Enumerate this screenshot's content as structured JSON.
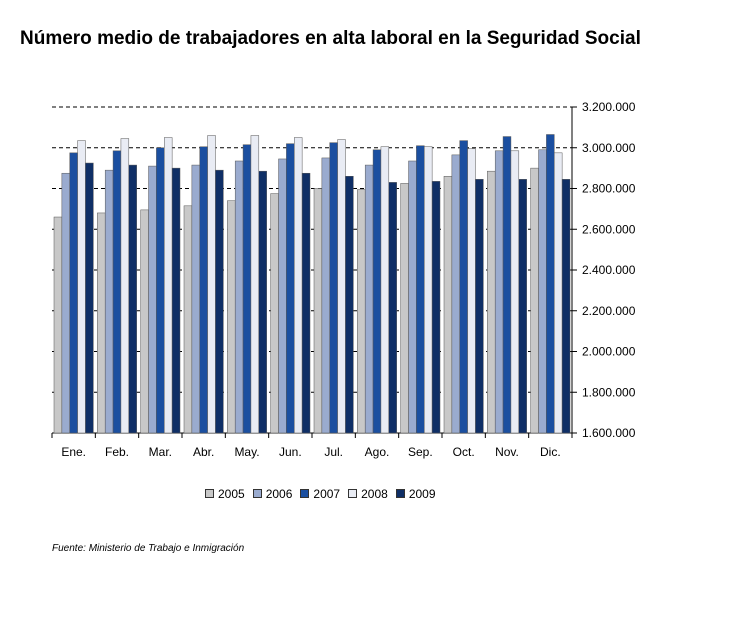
{
  "title": "Número medio de trabajadores en alta laboral en la Seguridad Social",
  "source": "Fuente: Ministerio de Trabajo e Inmigración",
  "chart_data": {
    "type": "bar",
    "categories": [
      "Ene.",
      "Feb.",
      "Mar.",
      "Abr.",
      "May.",
      "Jun.",
      "Jul.",
      "Ago.",
      "Sep.",
      "Oct.",
      "Nov.",
      "Dic."
    ],
    "series": [
      {
        "name": "2005",
        "color": "#c8c8c8",
        "values": [
          2660000,
          2680000,
          2695000,
          2715000,
          2740000,
          2775000,
          2800000,
          2795000,
          2825000,
          2860000,
          2885000,
          2900000
        ]
      },
      {
        "name": "2006",
        "color": "#9aabcf",
        "values": [
          2875000,
          2890000,
          2910000,
          2915000,
          2935000,
          2945000,
          2950000,
          2915000,
          2935000,
          2965000,
          2985000,
          2990000
        ]
      },
      {
        "name": "2007",
        "color": "#1b4fa0",
        "values": [
          2975000,
          2985000,
          3000000,
          3005000,
          3015000,
          3020000,
          3025000,
          2990000,
          3010000,
          3035000,
          3055000,
          3065000
        ]
      },
      {
        "name": "2008",
        "color": "#e9ecf4",
        "values": [
          3035000,
          3045000,
          3050000,
          3060000,
          3060000,
          3050000,
          3040000,
          3005000,
          3005000,
          2995000,
          2985000,
          2975000
        ]
      },
      {
        "name": "2009",
        "color": "#0f2f66",
        "values": [
          2925000,
          2915000,
          2900000,
          2890000,
          2885000,
          2875000,
          2860000,
          2830000,
          2835000,
          2845000,
          2845000,
          2845000
        ]
      }
    ],
    "yticks": [
      "1.600.000",
      "1.800.000",
      "2.000.000",
      "2.200.000",
      "2.400.000",
      "2.600.000",
      "2.800.000",
      "3.000.000",
      "3.200.000"
    ],
    "ylim": [
      1600000,
      3200000
    ],
    "y_axis_side": "right",
    "grid": "dashed horizontal",
    "legend_position": "bottom"
  }
}
